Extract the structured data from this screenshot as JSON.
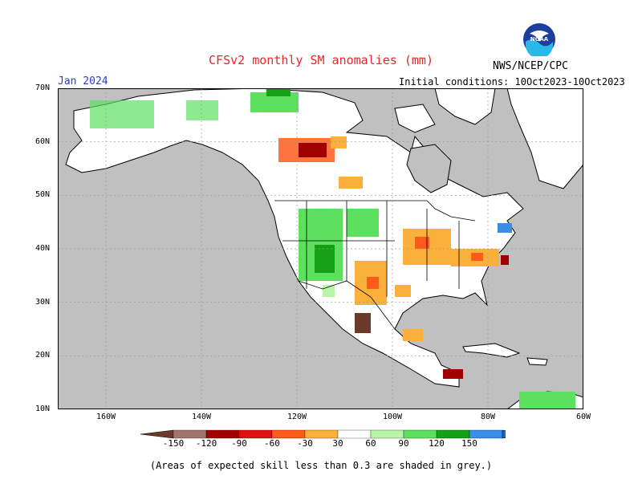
{
  "title": "CFSv2 monthly SM anomalies (mm)",
  "org": "NWS/NCEP/CPC",
  "month": "Jan 2024",
  "initial_conditions": "Initial conditions: 10Oct2023-10Oct2023",
  "footnote": "(Areas of expected skill less than 0.3 are shaded in grey.)",
  "logo": {
    "icon": "noaa-logo",
    "text": "NOAA"
  },
  "lat_labels": [
    "70N",
    "60N",
    "50N",
    "40N",
    "30N",
    "20N",
    "10N"
  ],
  "lon_labels": [
    "160W",
    "140W",
    "120W",
    "100W",
    "80W",
    "60W"
  ],
  "colorbar": {
    "labels": [
      "-150",
      "-120",
      "-90",
      "-60",
      "-30",
      "30",
      "60",
      "90",
      "120",
      "150"
    ],
    "colors": [
      "#6b3a2a",
      "#a0756a",
      "#a00000",
      "#e01010",
      "#ff5a1a",
      "#fbb03b",
      "#ffffff",
      "#b8f5a8",
      "#5de05d",
      "#15a015",
      "#3a8ee6",
      "#1565d8"
    ]
  },
  "colors": {
    "land": "#ffffff",
    "low_skill": "#c0c0c0",
    "coast": "#000000",
    "grid": "#9a9a9a"
  }
}
